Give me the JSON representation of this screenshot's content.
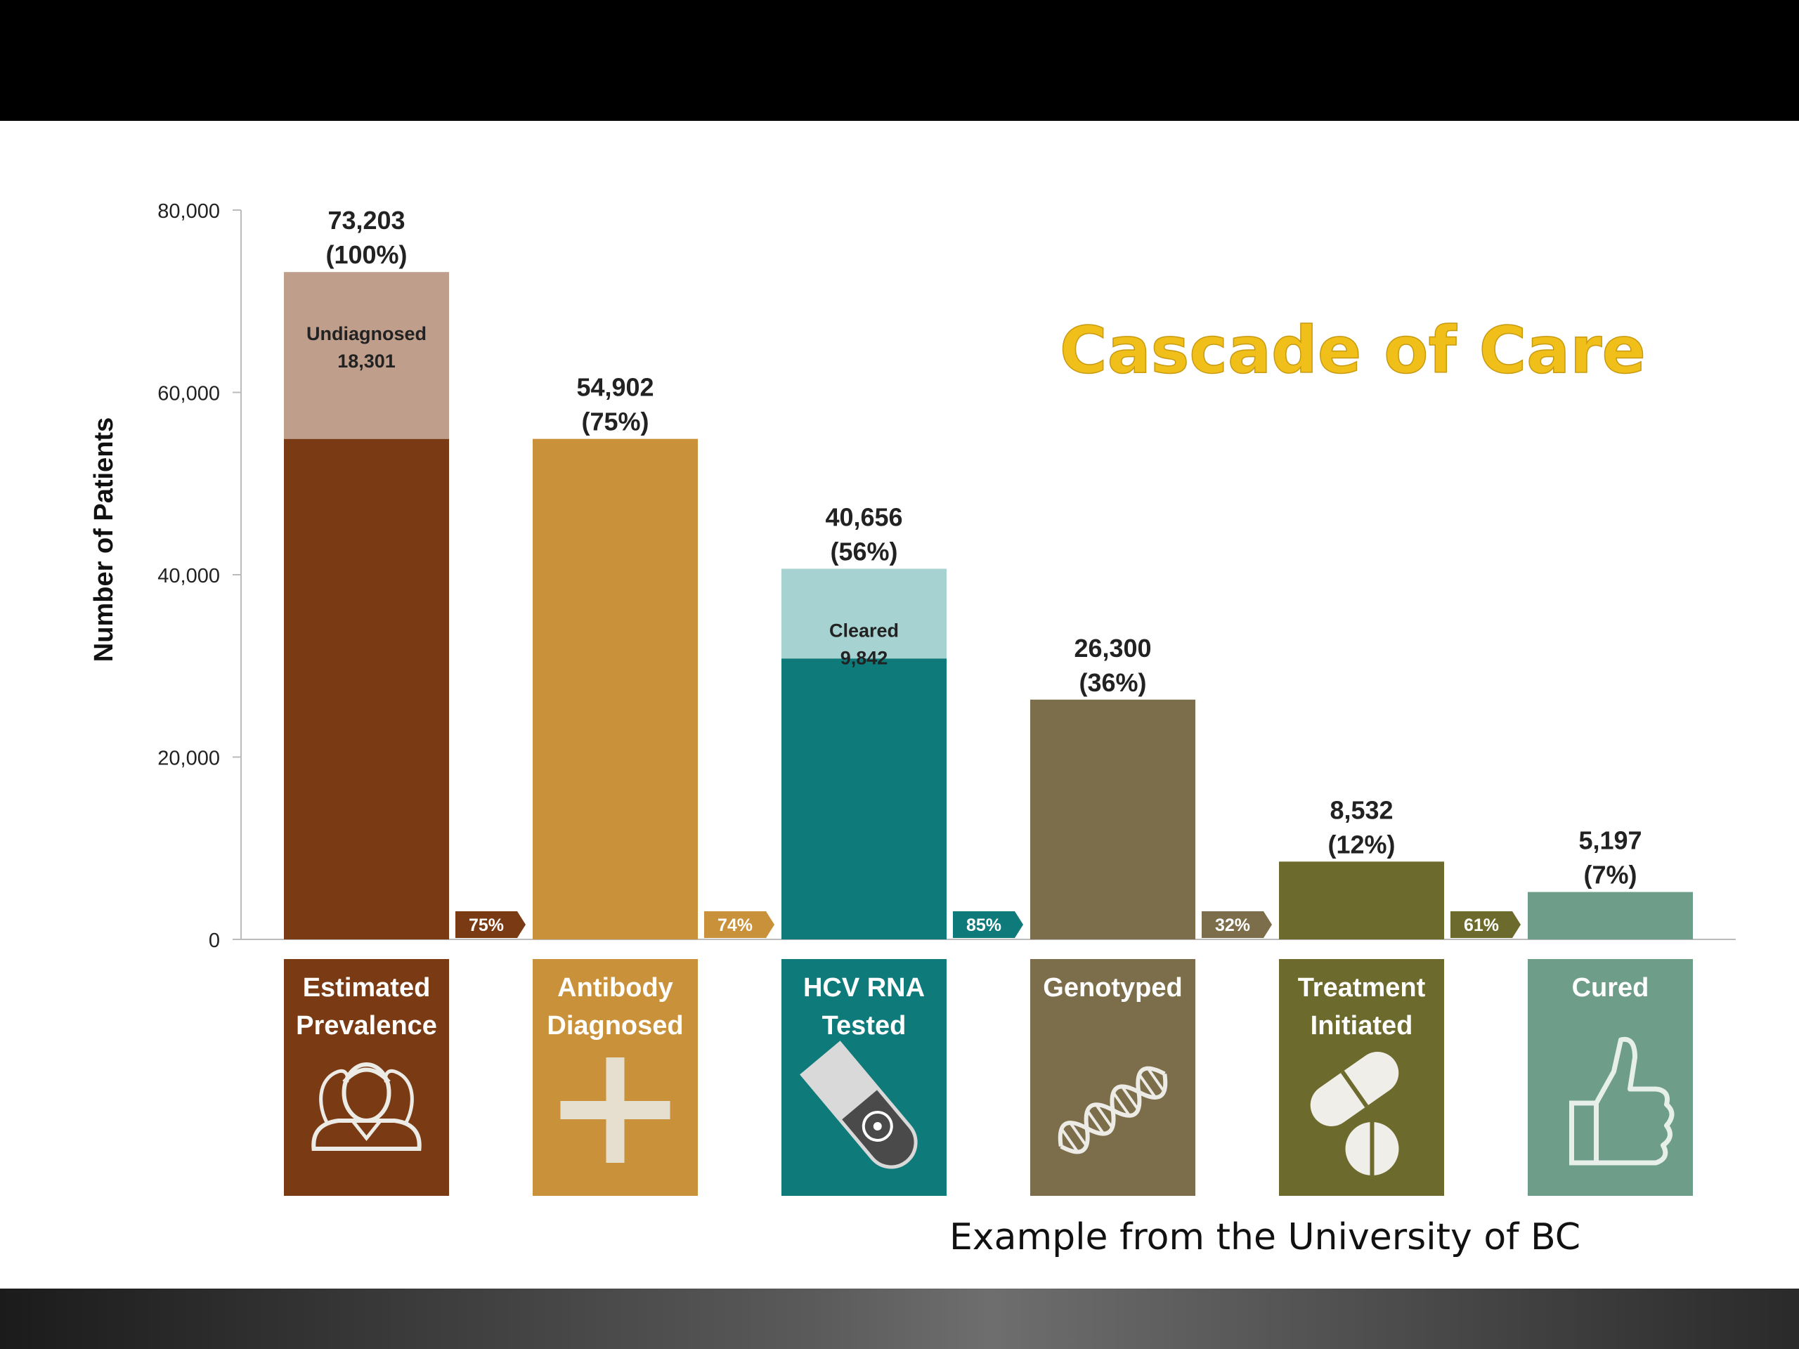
{
  "slide": {
    "title": "Cascade of Care",
    "caption": "Example from the University of BC"
  },
  "chart_data": {
    "type": "bar",
    "ylabel": "Number of Patients",
    "ylim": [
      0,
      80000
    ],
    "yticks": [
      0,
      20000,
      40000,
      60000,
      80000
    ],
    "ytick_labels": [
      "0",
      "20,000",
      "40,000",
      "60,000",
      "80,000"
    ],
    "grid": false,
    "categories": [
      {
        "lines": [
          "Estimated",
          "Prevalence"
        ],
        "icon": "people-icon"
      },
      {
        "lines": [
          "Antibody",
          "Diagnosed"
        ],
        "icon": "plus-icon"
      },
      {
        "lines": [
          "HCV RNA",
          "Tested"
        ],
        "icon": "test-tube-icon"
      },
      {
        "lines": [
          "Genotyped"
        ],
        "icon": "dna-icon"
      },
      {
        "lines": [
          "Treatment",
          "Initiated"
        ],
        "icon": "pills-icon"
      },
      {
        "lines": [
          "Cured"
        ],
        "icon": "thumbs-up-icon"
      }
    ],
    "bars": [
      {
        "value": 73203,
        "value_label": "73,203",
        "pct_label": "(100%)",
        "color": "#7a3a14",
        "segment": {
          "label": "Undiagnosed",
          "value_label": "18,301",
          "value": 18301,
          "color": "#bf9f8c"
        }
      },
      {
        "value": 54902,
        "value_label": "54,902",
        "pct_label": "(75%)",
        "color": "#c8913a"
      },
      {
        "value": 40656,
        "value_label": "40,656",
        "pct_label": "(56%)",
        "color": "#0f7a7a",
        "segment": {
          "label": "Cleared",
          "value_label": "9,842",
          "value": 9842,
          "color": "#a6d3d1"
        }
      },
      {
        "value": 26300,
        "value_label": "26,300",
        "pct_label": "(36%)",
        "color": "#7d6e4b"
      },
      {
        "value": 8532,
        "value_label": "8,532",
        "pct_label": "(12%)",
        "color": "#6c6a2c"
      },
      {
        "value": 5197,
        "value_label": "5,197",
        "pct_label": "(7%)",
        "color": "#6e9d8a"
      }
    ],
    "step_percentages": [
      {
        "label": "75%",
        "color": "#7a3a14"
      },
      {
        "label": "74%",
        "color": "#c8913a"
      },
      {
        "label": "85%",
        "color": "#0f7a7a"
      },
      {
        "label": "32%",
        "color": "#7d6e4b"
      },
      {
        "label": "61%",
        "color": "#6c6a2c"
      }
    ]
  }
}
